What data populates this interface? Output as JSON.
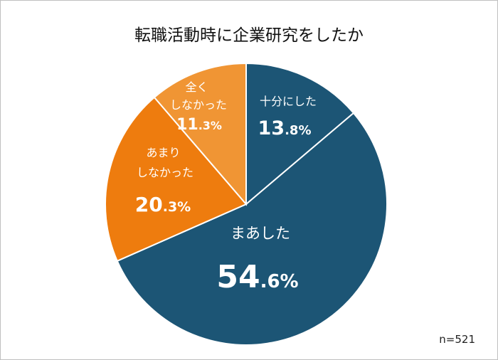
{
  "chart_data": {
    "type": "pie",
    "title": "転職活動時に企業研究をしたか",
    "note": "n=521",
    "slices": [
      {
        "label": "十分にした",
        "value": 13.8,
        "int": "13",
        "dec": ".8%",
        "color": "#1c5575"
      },
      {
        "label": "まあした",
        "value": 54.6,
        "int": "54",
        "dec": ".6%",
        "color": "#1c5575"
      },
      {
        "label": "あまりしなかった",
        "value": 20.3,
        "int": "20",
        "dec": ".3%",
        "color": "#ee7c0e"
      },
      {
        "label": "全くしなかった",
        "value": 11.3,
        "int": "11",
        "dec": ".3%",
        "color": "#f09534"
      }
    ]
  }
}
